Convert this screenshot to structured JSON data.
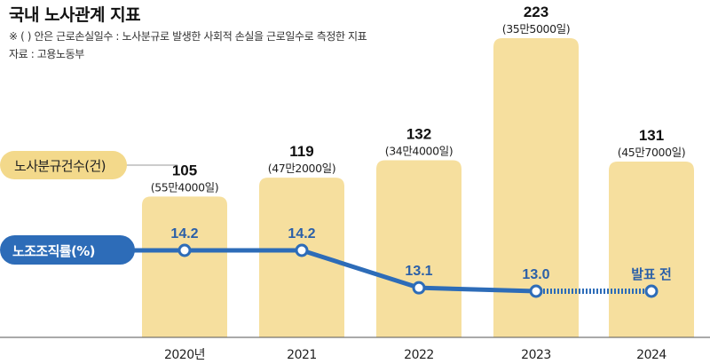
{
  "header": {
    "title": "국내 노사관계 지표",
    "note": "※ (  ) 안은 근로손실일수 : 노사분규로 발생한 사회적 손실을 근로일수로 측정한 지표",
    "source": "자료 : 고용노동부"
  },
  "chart_data": {
    "type": "bar+line",
    "title": "국내 노사관계 지표",
    "categories": [
      "2020년",
      "2021",
      "2022",
      "2023",
      "2024"
    ],
    "ylim": [
      0,
      240
    ],
    "series": [
      {
        "name": "노사분규건수(건)",
        "type": "bar",
        "values": [
          105,
          119,
          132,
          223,
          131
        ],
        "sublabels": [
          "(55만4000일)",
          "(47만2000일)",
          "(34만4000일)",
          "(35만5000일)",
          "(45만7000일)"
        ]
      },
      {
        "name": "노조조직률(%)",
        "type": "line",
        "values": [
          14.2,
          14.2,
          13.1,
          13.0,
          null
        ],
        "labels": [
          "14.2",
          "14.2",
          "13.1",
          "13.0",
          "발표 전"
        ],
        "ylim": [
          12.0,
          15.5
        ]
      }
    ]
  },
  "colors": {
    "bar": "#f6df9e",
    "bar_legend": "#f3d98b",
    "line": "#2d6cb8",
    "line_label": "#2a5fa8",
    "marker_fill": "#ffffff"
  }
}
